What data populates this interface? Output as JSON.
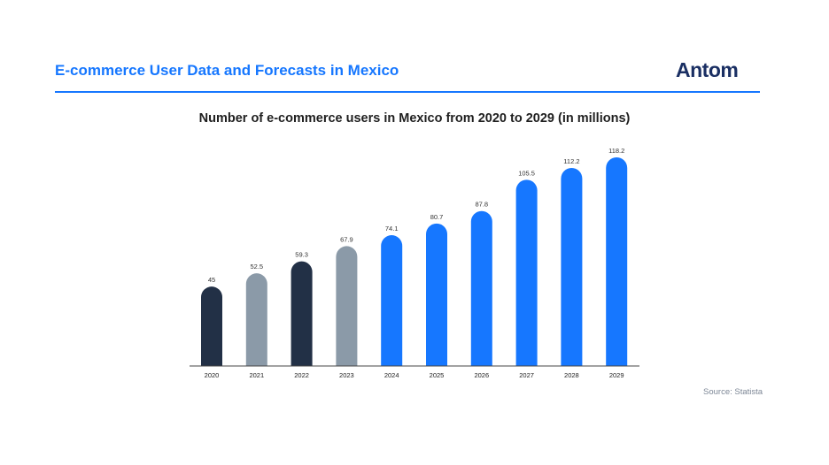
{
  "header": {
    "title": "E-commerce User Data and Forecasts in Mexico",
    "brand": "Antom"
  },
  "colors": {
    "accent": "#1677ff",
    "dark": "#223046",
    "gray": "#8b9aa8",
    "axis": "#444444"
  },
  "chart_data": {
    "type": "bar",
    "title": "Number of e-commerce users in Mexico from 2020 to 2029 (in millions)",
    "xlabel": "",
    "ylabel": "",
    "categories": [
      "2020",
      "2021",
      "2022",
      "2023",
      "2024",
      "2025",
      "2026",
      "2027",
      "2028",
      "2029"
    ],
    "values": [
      45,
      52.5,
      59.3,
      67.9,
      74.1,
      80.7,
      87.8,
      105.5,
      112.2,
      118.2
    ],
    "value_labels": [
      "45",
      "52.5",
      "59.3",
      "67.9",
      "74.1",
      "80.7",
      "87.8",
      "105.5",
      "112.2",
      "118.2"
    ],
    "bar_colors": [
      "#223046",
      "#8b9aa8",
      "#223046",
      "#8b9aa8",
      "#1677ff",
      "#1677ff",
      "#1677ff",
      "#1677ff",
      "#1677ff",
      "#1677ff"
    ],
    "ylim": [
      0,
      118.2
    ],
    "grid": false,
    "legend": "none"
  },
  "source": "Source: Statista"
}
